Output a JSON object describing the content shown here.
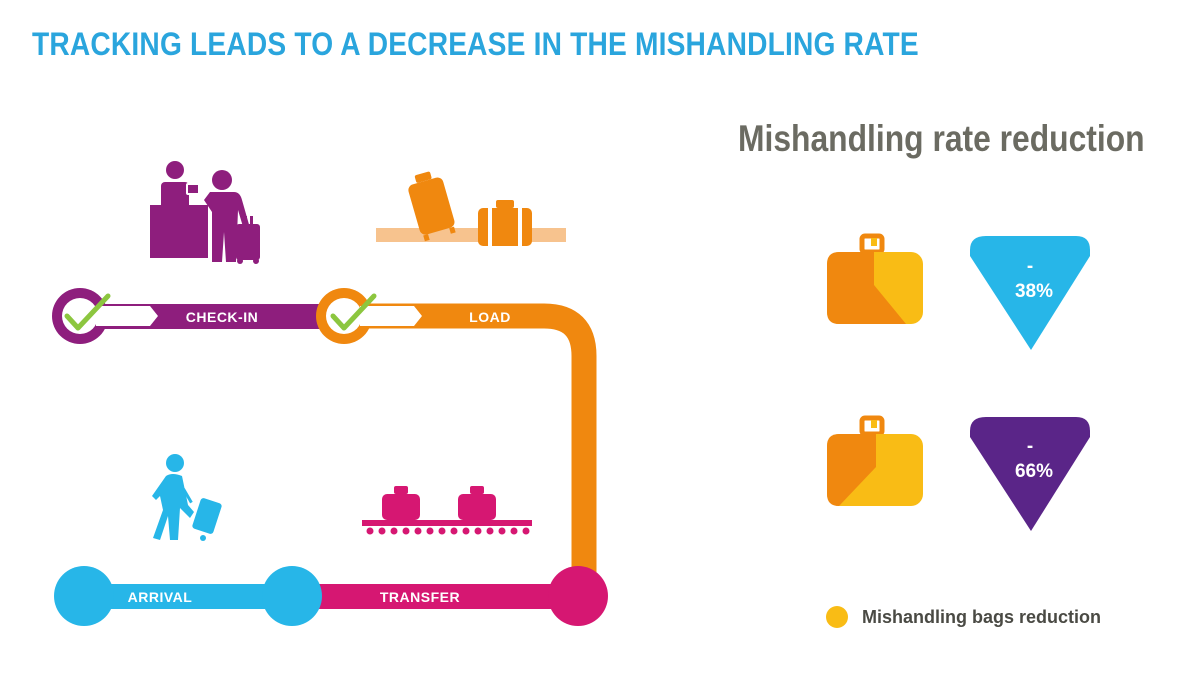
{
  "header": {
    "title": "TRACKING LEADS TO A DECREASE IN THE MISHANDLING RATE"
  },
  "panel": {
    "title": "Mishandling rate reduction"
  },
  "stages": {
    "checkin": {
      "label": "CHECK-IN",
      "color": "#8e1e7d",
      "icon": "check-in-desk-icon"
    },
    "load": {
      "label": "LOAD",
      "color": "#f0880f",
      "icon": "luggage-loading-icon"
    },
    "transfer": {
      "label": "TRANSFER",
      "color": "#d61772",
      "icon": "baggage-conveyor-icon"
    },
    "arrival": {
      "label": "ARRIVAL",
      "color": "#27b6e8",
      "icon": "traveler-with-suitcase-icon"
    }
  },
  "reductions": [
    {
      "dash": "-",
      "value": "38%",
      "arrow_color": "#27b6e8",
      "icon": "suitcase-icon"
    },
    {
      "dash": "-",
      "value": "66%",
      "arrow_color": "#5a2588",
      "icon": "suitcase-icon"
    }
  ],
  "legend": {
    "label": "Mishandling bags reduction",
    "color": "#f9bc15"
  },
  "colors": {
    "title": "#2aa5dd",
    "panel_title": "#6b6b62",
    "check": "#8cc63f",
    "bag_dark": "#f0880f",
    "bag_light": "#f9bc15"
  }
}
